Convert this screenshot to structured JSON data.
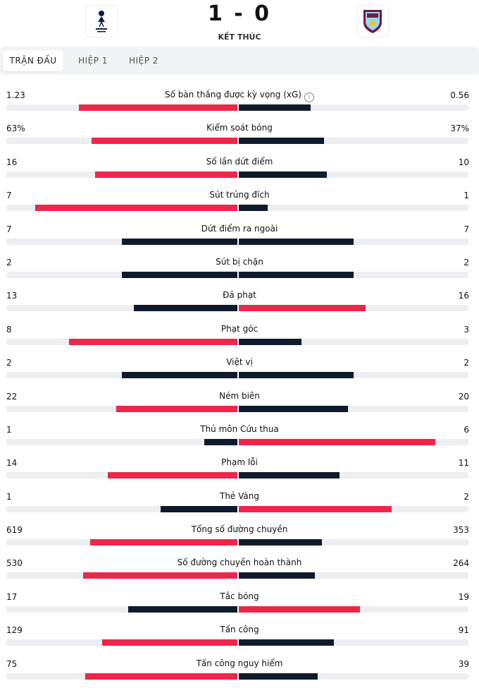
{
  "match": {
    "score": "1 - 0",
    "status": "KẾT THÚC",
    "home_crest": "tottenham-crest-icon",
    "away_crest": "burnley-crest-icon"
  },
  "tabs": [
    {
      "label": "TRẬN ĐẤU",
      "active": true
    },
    {
      "label": "HIỆP 1",
      "active": false
    },
    {
      "label": "HIỆP 2",
      "active": false
    }
  ],
  "colors": {
    "leader": "#f0254a",
    "other": "#0f1b2d",
    "track": "#eceef1"
  },
  "stats": [
    {
      "label": "Số bàn thắng được kỳ vọng (xG)",
      "home": "1.23",
      "away": "0.56",
      "home_value": 1.23,
      "away_value": 0.56,
      "info": true
    },
    {
      "label": "Kiểm soát bóng",
      "home": "63%",
      "away": "37%",
      "home_value": 63,
      "away_value": 37
    },
    {
      "label": "Số lần dứt điểm",
      "home": "16",
      "away": "10",
      "home_value": 16,
      "away_value": 10
    },
    {
      "label": "Sút trúng đích",
      "home": "7",
      "away": "1",
      "home_value": 7,
      "away_value": 1
    },
    {
      "label": "Dứt điểm ra ngoài",
      "home": "7",
      "away": "7",
      "home_value": 7,
      "away_value": 7
    },
    {
      "label": "Sút bị chặn",
      "home": "2",
      "away": "2",
      "home_value": 2,
      "away_value": 2
    },
    {
      "label": "Đá phạt",
      "home": "13",
      "away": "16",
      "home_value": 13,
      "away_value": 16
    },
    {
      "label": "Phạt góc",
      "home": "8",
      "away": "3",
      "home_value": 8,
      "away_value": 3
    },
    {
      "label": "Việt vị",
      "home": "2",
      "away": "2",
      "home_value": 2,
      "away_value": 2
    },
    {
      "label": "Ném biên",
      "home": "22",
      "away": "20",
      "home_value": 22,
      "away_value": 20
    },
    {
      "label": "Thủ môn Cứu thua",
      "home": "1",
      "away": "6",
      "home_value": 1,
      "away_value": 6
    },
    {
      "label": "Phạm lỗi",
      "home": "14",
      "away": "11",
      "home_value": 14,
      "away_value": 11
    },
    {
      "label": "Thẻ Vàng",
      "home": "1",
      "away": "2",
      "home_value": 1,
      "away_value": 2
    },
    {
      "label": "Tổng số đường chuyền",
      "home": "619",
      "away": "353",
      "home_value": 619,
      "away_value": 353
    },
    {
      "label": "Số đường chuyền hoàn thành",
      "home": "530",
      "away": "264",
      "home_value": 530,
      "away_value": 264
    },
    {
      "label": "Tắc bóng",
      "home": "17",
      "away": "19",
      "home_value": 17,
      "away_value": 19
    },
    {
      "label": "Tấn công",
      "home": "129",
      "away": "91",
      "home_value": 129,
      "away_value": 91
    },
    {
      "label": "Tấn công nguy hiểm",
      "home": "75",
      "away": "39",
      "home_value": 75,
      "away_value": 39
    }
  ]
}
